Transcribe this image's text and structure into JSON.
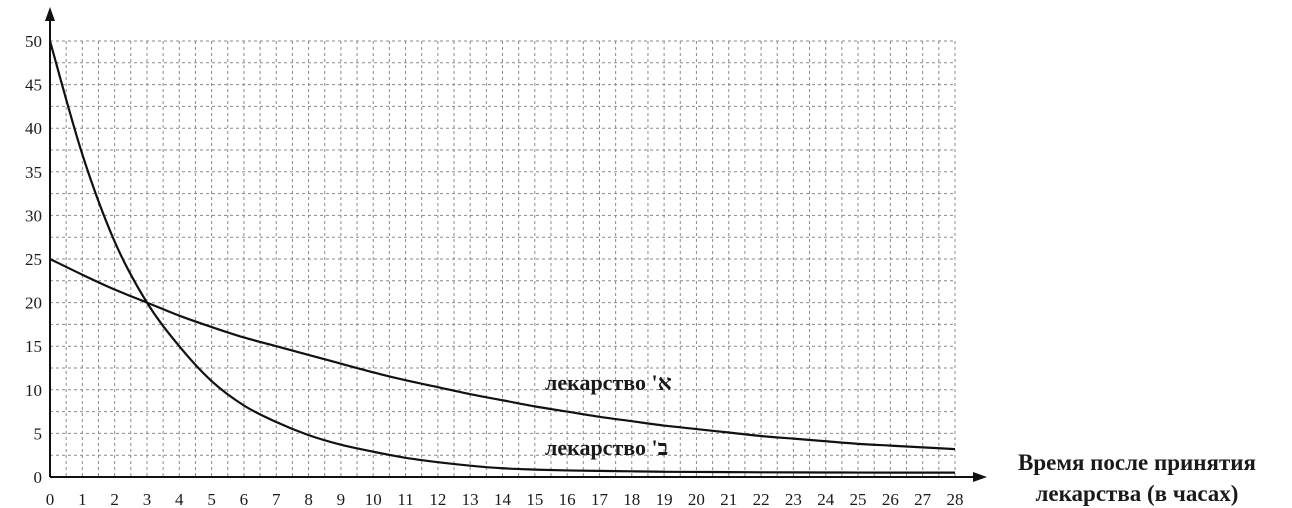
{
  "chart_data": {
    "type": "line",
    "title": "",
    "xlabel_line1": "Время после принятия",
    "xlabel_line2": "лекарства (в часах)",
    "ylabel": "",
    "xlim": [
      0,
      28
    ],
    "ylim": [
      0,
      50
    ],
    "x_ticks": [
      0,
      1,
      2,
      3,
      4,
      5,
      6,
      7,
      8,
      9,
      10,
      11,
      12,
      13,
      14,
      15,
      16,
      17,
      18,
      19,
      20,
      21,
      22,
      23,
      24,
      25,
      26,
      27,
      28
    ],
    "y_ticks": [
      0,
      5,
      10,
      15,
      20,
      25,
      30,
      35,
      40,
      45,
      50
    ],
    "grid": true,
    "series": [
      {
        "name": "лекарство 'א",
        "x": [
          0,
          1,
          2,
          3,
          4,
          5,
          6,
          7,
          8,
          9,
          10,
          11,
          12,
          13,
          14,
          15,
          16,
          17,
          18,
          19,
          20,
          21,
          22,
          23,
          24,
          25,
          26,
          27,
          28
        ],
        "values": [
          25,
          23.2,
          21.5,
          20,
          18.5,
          17.2,
          16,
          15,
          14,
          13,
          12,
          11.1,
          10.3,
          9.5,
          8.8,
          8.1,
          7.5,
          6.9,
          6.4,
          5.9,
          5.5,
          5.1,
          4.7,
          4.4,
          4.1,
          3.8,
          3.6,
          3.4,
          3.2
        ]
      },
      {
        "name": "лекарство 'ב",
        "x": [
          0,
          1,
          2,
          3,
          4,
          5,
          6,
          7,
          8,
          9,
          10,
          11,
          12,
          13,
          14,
          15,
          16,
          17,
          18,
          19,
          20,
          21,
          22,
          23,
          24,
          25,
          26,
          27,
          28
        ],
        "values": [
          50,
          37,
          27,
          20,
          15,
          11,
          8.2,
          6.3,
          4.8,
          3.7,
          2.9,
          2.2,
          1.7,
          1.3,
          1.0,
          0.85,
          0.75,
          0.7,
          0.65,
          0.6,
          0.58,
          0.56,
          0.54,
          0.53,
          0.52,
          0.51,
          0.5,
          0.5,
          0.5
        ]
      }
    ]
  }
}
